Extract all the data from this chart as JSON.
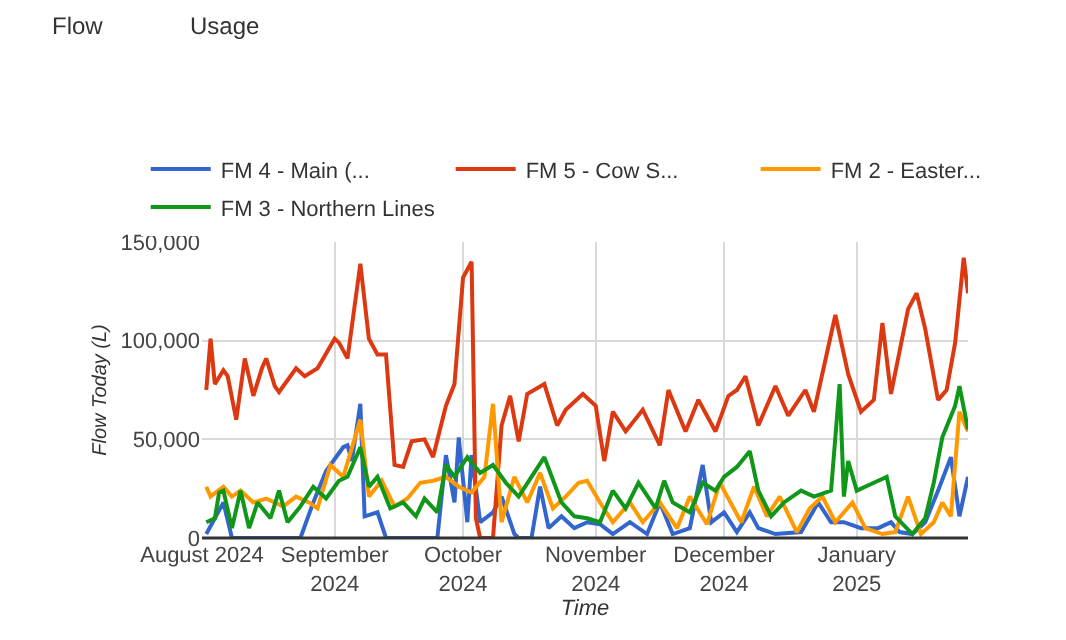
{
  "chart_data": {
    "type": "line",
    "xlabel": "Time",
    "ylabel": "Flow Today (L)",
    "annotations": [
      "Flow",
      "Usage"
    ],
    "xlim": [
      "2024-08-01",
      "2025-01-27"
    ],
    "xticks": [
      {
        "value": "2024-08-01",
        "label": "August 2024"
      },
      {
        "value": "2024-09-01",
        "label": "September\n2024"
      },
      {
        "value": "2024-10-01",
        "label": "October\n2024"
      },
      {
        "value": "2024-11-01",
        "label": "November\n2024"
      },
      {
        "value": "2024-12-01",
        "label": "December\n2024"
      },
      {
        "value": "2025-01-01",
        "label": "January\n2025"
      }
    ],
    "ylim": [
      0,
      150000
    ],
    "yticks": [
      0,
      {
        "value": 50000,
        "label": "50,000"
      },
      {
        "value": 100000,
        "label": "100,000"
      },
      {
        "value": 150000,
        "label": "150,000"
      }
    ],
    "grid": true,
    "legend": "top",
    "marker": "none",
    "line_style": "solid",
    "series": [
      {
        "name": "FM 4 - Main (...",
        "color": "#3366cc",
        "x": [
          "2024-08-02",
          "2024-08-04",
          "2024-08-06",
          "2024-08-08",
          "2024-08-24",
          "2024-08-27",
          "2024-08-30",
          "2024-09-03",
          "2024-09-04",
          "2024-09-05",
          "2024-09-07",
          "2024-09-08",
          "2024-09-11",
          "2024-09-13",
          "2024-09-25",
          "2024-09-27",
          "2024-09-29",
          "2024-09-30",
          "2024-10-02",
          "2024-10-03",
          "2024-10-05",
          "2024-10-08",
          "2024-10-10",
          "2024-10-13",
          "2024-10-14",
          "2024-10-17",
          "2024-10-19",
          "2024-10-21",
          "2024-10-24",
          "2024-10-27",
          "2024-10-30",
          "2024-11-02",
          "2024-11-05",
          "2024-11-09",
          "2024-11-13",
          "2024-11-16",
          "2024-11-19",
          "2024-11-23",
          "2024-11-26",
          "2024-11-28",
          "2024-12-01",
          "2024-12-04",
          "2024-12-07",
          "2024-12-09",
          "2024-12-13",
          "2024-12-19",
          "2024-12-23",
          "2024-12-26",
          "2024-12-29",
          "2025-01-02",
          "2025-01-06",
          "2025-01-09",
          "2025-01-11",
          "2025-01-14",
          "2025-01-17",
          "2025-01-20",
          "2025-01-23",
          "2025-01-25",
          "2025-01-27"
        ],
        "values": [
          2000,
          10000,
          18000,
          0,
          0,
          18000,
          34000,
          46000,
          47000,
          39000,
          68000,
          11000,
          13000,
          0,
          0,
          42000,
          18000,
          51000,
          8000,
          42000,
          8000,
          13000,
          21000,
          2000,
          0,
          0,
          26000,
          5000,
          11000,
          5000,
          8000,
          7000,
          2000,
          8000,
          2000,
          18000,
          2000,
          5000,
          37000,
          8000,
          13000,
          3000,
          13000,
          5000,
          2000,
          3000,
          18000,
          8000,
          8000,
          5000,
          5000,
          8000,
          3000,
          2000,
          8000,
          24000,
          41000,
          11000,
          31000
        ]
      },
      {
        "name": "FM 5 - Cow S...",
        "color": "#dc3912",
        "x": [
          "2024-08-02",
          "2024-08-03",
          "2024-08-04",
          "2024-08-06",
          "2024-08-07",
          "2024-08-09",
          "2024-08-11",
          "2024-08-13",
          "2024-08-15",
          "2024-08-16",
          "2024-08-18",
          "2024-08-19",
          "2024-08-23",
          "2024-08-25",
          "2024-08-28",
          "2024-09-01",
          "2024-09-02",
          "2024-09-04",
          "2024-09-07",
          "2024-09-09",
          "2024-09-11",
          "2024-09-13",
          "2024-09-15",
          "2024-09-17",
          "2024-09-19",
          "2024-09-22",
          "2024-09-24",
          "2024-09-27",
          "2024-09-29",
          "2024-10-01",
          "2024-10-03",
          "2024-10-04",
          "2024-10-05",
          "2024-10-08",
          "2024-10-10",
          "2024-10-12",
          "2024-10-14",
          "2024-10-16",
          "2024-10-20",
          "2024-10-23",
          "2024-10-25",
          "2024-10-29",
          "2024-11-01",
          "2024-11-03",
          "2024-11-05",
          "2024-11-08",
          "2024-11-12",
          "2024-11-16",
          "2024-11-18",
          "2024-11-22",
          "2024-11-25",
          "2024-11-29",
          "2024-12-02",
          "2024-12-04",
          "2024-12-06",
          "2024-12-09",
          "2024-12-13",
          "2024-12-16",
          "2024-12-20",
          "2024-12-22",
          "2024-12-27",
          "2024-12-30",
          "2025-01-02",
          "2025-01-05",
          "2025-01-07",
          "2025-01-09",
          "2025-01-13",
          "2025-01-15",
          "2025-01-17",
          "2025-01-20",
          "2025-01-22",
          "2025-01-24",
          "2025-01-26",
          "2025-01-27"
        ],
        "values": [
          75000,
          101000,
          78000,
          85000,
          82000,
          60000,
          91000,
          72000,
          86000,
          91000,
          77000,
          74000,
          86000,
          82000,
          86000,
          101000,
          99000,
          91000,
          139000,
          101000,
          93000,
          93000,
          37000,
          36000,
          49000,
          50000,
          41000,
          67000,
          78000,
          132000,
          140000,
          10000,
          0,
          0,
          57000,
          72000,
          49000,
          73000,
          78000,
          57000,
          65000,
          73000,
          67000,
          39000,
          64000,
          54000,
          65000,
          47000,
          75000,
          54000,
          70000,
          54000,
          72000,
          75000,
          82000,
          57000,
          77000,
          62000,
          75000,
          64000,
          113000,
          83000,
          64000,
          70000,
          109000,
          73000,
          116000,
          124000,
          106000,
          70000,
          75000,
          99000,
          142000,
          124000
        ]
      },
      {
        "name": "FM 2 - Easter...",
        "color": "#ff9900",
        "x": [
          "2024-08-02",
          "2024-08-03",
          "2024-08-06",
          "2024-08-08",
          "2024-08-10",
          "2024-08-13",
          "2024-08-16",
          "2024-08-20",
          "2024-08-23",
          "2024-08-26",
          "2024-08-28",
          "2024-08-31",
          "2024-09-03",
          "2024-09-07",
          "2024-09-09",
          "2024-09-12",
          "2024-09-15",
          "2024-09-18",
          "2024-09-21",
          "2024-09-24",
          "2024-09-27",
          "2024-09-30",
          "2024-10-03",
          "2024-10-06",
          "2024-10-08",
          "2024-10-10",
          "2024-10-13",
          "2024-10-16",
          "2024-10-19",
          "2024-10-22",
          "2024-10-25",
          "2024-10-28",
          "2024-10-30",
          "2024-11-02",
          "2024-11-05",
          "2024-11-09",
          "2024-11-12",
          "2024-11-16",
          "2024-11-20",
          "2024-11-23",
          "2024-11-27",
          "2024-11-30",
          "2024-12-05",
          "2024-12-08",
          "2024-12-11",
          "2024-12-14",
          "2024-12-18",
          "2024-12-21",
          "2024-12-24",
          "2024-12-27",
          "2024-12-31",
          "2025-01-03",
          "2025-01-07",
          "2025-01-10",
          "2025-01-13",
          "2025-01-16",
          "2025-01-19",
          "2025-01-21",
          "2025-01-23",
          "2025-01-25",
          "2025-01-27"
        ],
        "values": [
          26000,
          21000,
          26000,
          21000,
          24000,
          18000,
          20000,
          16000,
          21000,
          18000,
          15000,
          37000,
          31000,
          60000,
          21000,
          29000,
          16000,
          20000,
          28000,
          29000,
          31000,
          26000,
          23000,
          31000,
          68000,
          8000,
          31000,
          18000,
          33000,
          15000,
          21000,
          28000,
          29000,
          18000,
          8000,
          18000,
          8000,
          18000,
          5000,
          21000,
          7000,
          28000,
          8000,
          26000,
          11000,
          21000,
          3000,
          15000,
          21000,
          8000,
          18000,
          5000,
          2000,
          3000,
          21000,
          2000,
          8000,
          18000,
          11000,
          64000,
          54000
        ]
      },
      {
        "name": "FM 3 - Northern Lines",
        "color": "#109618",
        "x": [
          "2024-08-02",
          "2024-08-04",
          "2024-08-05",
          "2024-08-06",
          "2024-08-08",
          "2024-08-10",
          "2024-08-12",
          "2024-08-14",
          "2024-08-17",
          "2024-08-19",
          "2024-08-21",
          "2024-08-24",
          "2024-08-27",
          "2024-08-30",
          "2024-09-02",
          "2024-09-04",
          "2024-09-07",
          "2024-09-09",
          "2024-09-11",
          "2024-09-14",
          "2024-09-17",
          "2024-09-20",
          "2024-09-22",
          "2024-09-25",
          "2024-09-27",
          "2024-09-29",
          "2024-10-02",
          "2024-10-05",
          "2024-10-08",
          "2024-10-11",
          "2024-10-14",
          "2024-10-17",
          "2024-10-20",
          "2024-10-24",
          "2024-10-27",
          "2024-10-30",
          "2024-11-02",
          "2024-11-05",
          "2024-11-08",
          "2024-11-11",
          "2024-11-15",
          "2024-11-17",
          "2024-11-19",
          "2024-11-23",
          "2024-11-26",
          "2024-11-29",
          "2024-12-01",
          "2024-12-04",
          "2024-12-07",
          "2024-12-09",
          "2024-12-12",
          "2024-12-15",
          "2024-12-19",
          "2024-12-22",
          "2024-12-26",
          "2024-12-28",
          "2024-12-29",
          "2024-12-30",
          "2025-01-01",
          "2025-01-05",
          "2025-01-08",
          "2025-01-10",
          "2025-01-14",
          "2025-01-17",
          "2025-01-19",
          "2025-01-21",
          "2025-01-24",
          "2025-01-25",
          "2025-01-27"
        ],
        "values": [
          8000,
          10000,
          23000,
          24000,
          5000,
          24000,
          5000,
          18000,
          10000,
          24000,
          8000,
          16000,
          26000,
          20000,
          29000,
          31000,
          46000,
          26000,
          31000,
          15000,
          18000,
          11000,
          20000,
          13000,
          37000,
          31000,
          41000,
          33000,
          37000,
          28000,
          21000,
          31000,
          41000,
          18000,
          11000,
          10000,
          8000,
          24000,
          15000,
          28000,
          15000,
          29000,
          18000,
          13000,
          28000,
          24000,
          31000,
          36000,
          44000,
          24000,
          11000,
          18000,
          24000,
          21000,
          24000,
          78000,
          21000,
          39000,
          24000,
          28000,
          31000,
          11000,
          2000,
          10000,
          28000,
          51000,
          67000,
          77000,
          55000
        ]
      }
    ]
  }
}
